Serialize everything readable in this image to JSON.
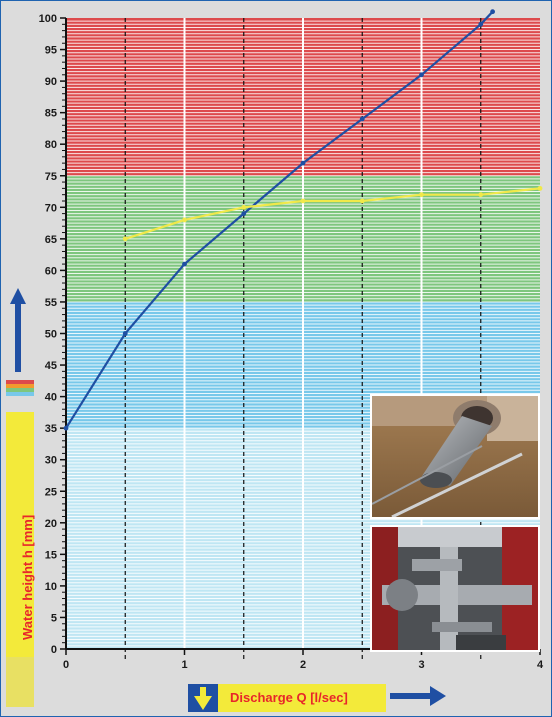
{
  "chart_data": {
    "type": "line",
    "title": "",
    "xlabel": "Discharge Q [l/sec]",
    "ylabel": "Water height h [mm]",
    "xlim": [
      0,
      4
    ],
    "ylim": [
      0,
      100
    ],
    "x_ticks": [
      "0",
      "1",
      "2",
      "3",
      "4"
    ],
    "y_ticks": [
      "0",
      "5",
      "10",
      "15",
      "20",
      "25",
      "30",
      "35",
      "40",
      "45",
      "50",
      "55",
      "60",
      "65",
      "70",
      "75",
      "80",
      "85",
      "90",
      "95",
      "100"
    ],
    "grid": "vertical dashed lines at 0.5, 1.5, 2.5, 3.5; solid white at 1, 2, 3",
    "bands": [
      {
        "from": 0,
        "to": 35,
        "color": "#bfe6f3"
      },
      {
        "from": 35,
        "to": 55,
        "color": "#78c8ea"
      },
      {
        "from": 55,
        "to": 75,
        "color": "#7ec67e"
      },
      {
        "from": 75,
        "to": 100,
        "color": "#dd4a4c"
      }
    ],
    "series": [
      {
        "color": "#1f4fa3",
        "x": [
          0,
          0.5,
          1,
          1.5,
          2,
          2.5,
          3,
          3.5,
          3.6
        ],
        "y": [
          35,
          50,
          61,
          69,
          77,
          84,
          91,
          99,
          101
        ]
      },
      {
        "color": "#f0e94a",
        "x": [
          0.5,
          1,
          1.5,
          2,
          2.5,
          3,
          3.5,
          4
        ],
        "y": [
          65,
          68,
          70,
          71,
          71,
          72,
          72,
          73
        ]
      }
    ]
  },
  "colors": {
    "label_bg": "#f3ea3a",
    "label_text": "#e8262a",
    "arrow": "#1f4fa3",
    "legend": [
      "#dd4a4c",
      "#f29a2e",
      "#7ec67e",
      "#78c8ea"
    ]
  }
}
